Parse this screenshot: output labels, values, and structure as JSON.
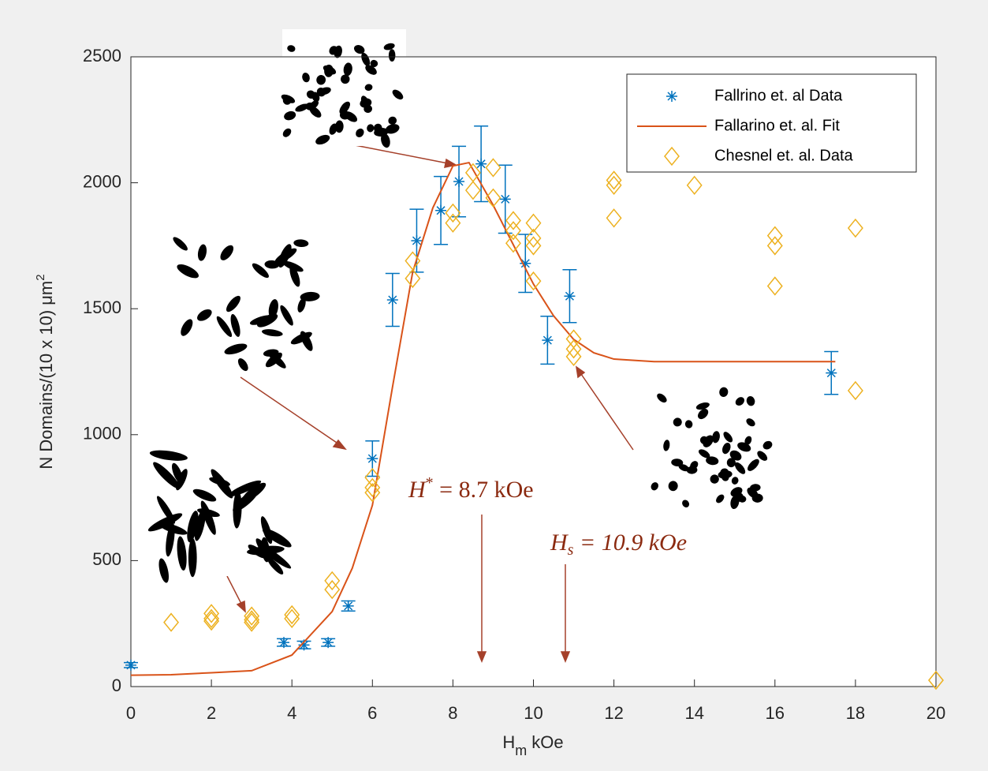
{
  "chart_data": {
    "type": "scatter",
    "xlabel": {
      "main": "H",
      "sub": "m",
      "rest": "kOe"
    },
    "ylabel": {
      "main": "N Domains/(10 x 10) μm",
      "sup": "2"
    },
    "xlim": [
      0,
      20
    ],
    "xticks": [
      0,
      2,
      4,
      6,
      8,
      10,
      12,
      14,
      16,
      18,
      20
    ],
    "ylim": [
      0,
      2500
    ],
    "yticks": [
      0,
      500,
      1000,
      1500,
      2000,
      2500
    ],
    "legend": "upper right",
    "series": [
      {
        "name": "Fallrino et. al Data",
        "color": "#0072bd",
        "marker": "asterisk",
        "line": false,
        "x": [
          0,
          3.8,
          4.3,
          4.9,
          5.4,
          6.0,
          6.5,
          7.1,
          7.7,
          8.15,
          8.7,
          9.3,
          9.8,
          10.35,
          10.9,
          17.4
        ],
        "values": [
          85,
          175,
          165,
          175,
          320,
          905,
          1535,
          1770,
          1890,
          2005,
          2075,
          1935,
          1680,
          1375,
          1550,
          1245
        ],
        "errors": [
          10,
          15,
          15,
          15,
          20,
          70,
          105,
          125,
          135,
          140,
          150,
          135,
          115,
          95,
          105,
          85
        ]
      },
      {
        "name": "Fallarino et. al. Fit",
        "color": "#d95319",
        "marker": "none",
        "line": true,
        "x": [
          0,
          1,
          2,
          3,
          4,
          5,
          5.5,
          6,
          6.5,
          7,
          7.5,
          8,
          8.4,
          9,
          9.5,
          10,
          10.5,
          11,
          11.5,
          12,
          13,
          17.5
        ],
        "values": [
          45,
          47,
          55,
          63,
          125,
          298,
          470,
          720,
          1190,
          1645,
          1900,
          2067,
          2080,
          1911,
          1754,
          1598,
          1472,
          1378,
          1325,
          1300,
          1290,
          1290
        ]
      },
      {
        "name": "Chesnel et. al. Data",
        "color": "#edb120",
        "marker": "diamond",
        "line": false,
        "x": [
          1,
          2,
          2,
          2,
          3,
          3,
          3,
          4,
          4,
          5,
          5,
          6,
          6,
          6,
          7,
          7,
          8,
          8,
          8.5,
          8.5,
          9,
          9,
          9.5,
          9.5,
          9.5,
          10,
          10,
          10,
          10,
          11,
          11,
          11,
          12,
          12,
          12,
          14,
          16,
          16,
          16,
          18,
          18,
          20
        ],
        "values": [
          255,
          290,
          270,
          260,
          280,
          265,
          255,
          285,
          270,
          420,
          385,
          830,
          790,
          770,
          1690,
          1620,
          1880,
          1840,
          2040,
          1970,
          2060,
          1940,
          1850,
          1810,
          1760,
          1840,
          1780,
          1750,
          1610,
          1380,
          1340,
          1310,
          2010,
          1990,
          1860,
          1990,
          1790,
          1750,
          1590,
          1820,
          1175,
          25
        ]
      }
    ],
    "annotations": [
      {
        "main": "H",
        "mark": "*",
        "rest": " = 8.7 kOe"
      },
      {
        "main": "H",
        "sub": "s",
        "rest": " = 10.9 kOe"
      }
    ]
  }
}
